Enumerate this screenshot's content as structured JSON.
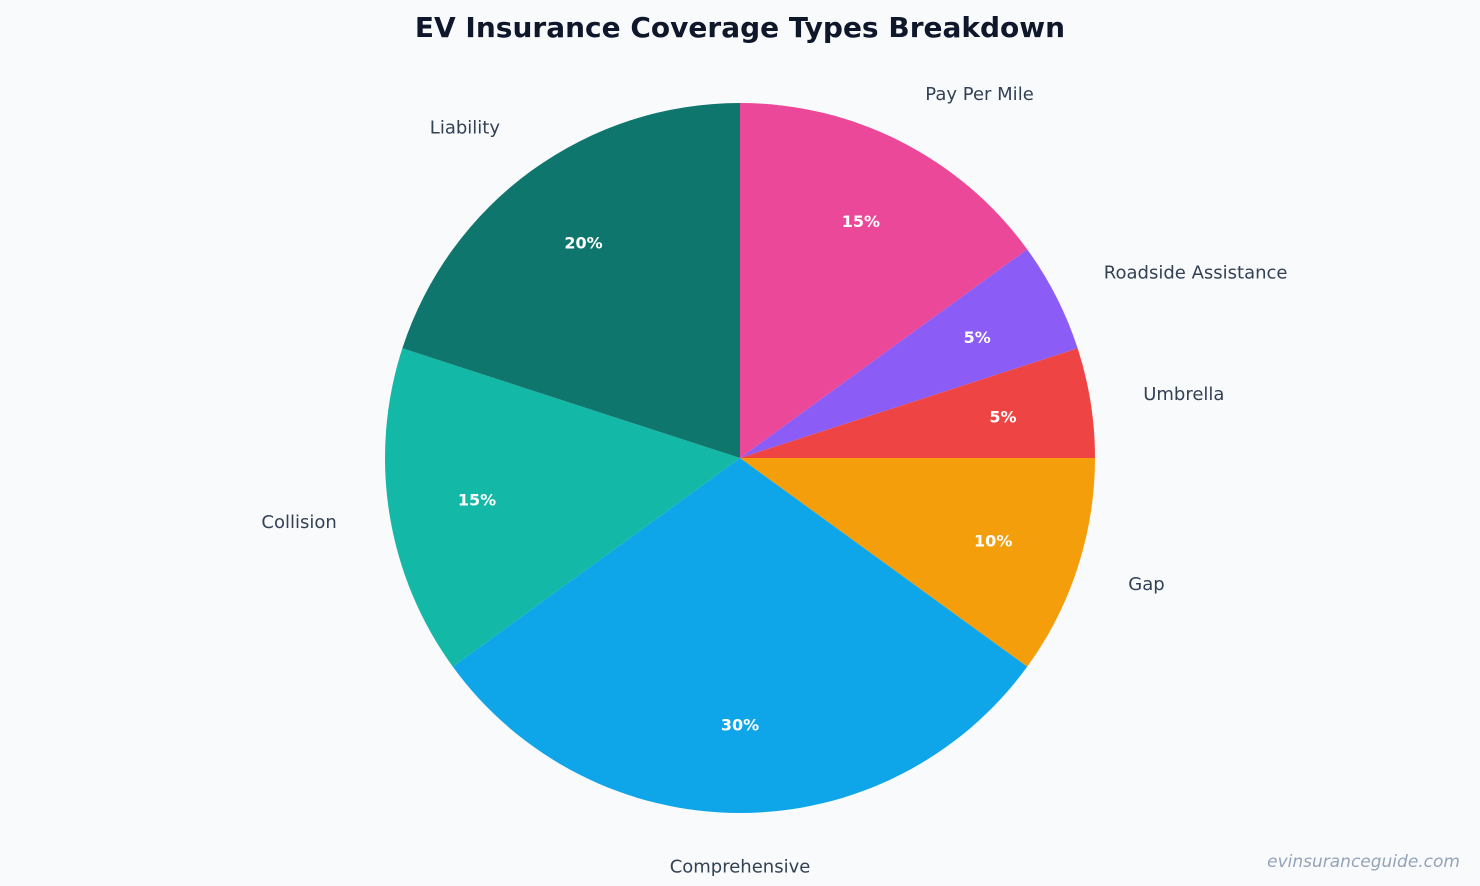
{
  "chart_data": {
    "type": "pie",
    "title": "EV Insurance Coverage Types Breakdown",
    "start_angle": "12 o'clock",
    "direction": "clockwise",
    "slices": [
      {
        "label": "Pay Per Mile",
        "value": 15,
        "pct_label": "15%",
        "color": "#ec4899"
      },
      {
        "label": "Roadside Assistance",
        "value": 5,
        "pct_label": "5%",
        "color": "#8b5cf6"
      },
      {
        "label": "Umbrella",
        "value": 5,
        "pct_label": "5%",
        "color": "#ef4444"
      },
      {
        "label": "Gap",
        "value": 10,
        "pct_label": "10%",
        "color": "#f59e0b"
      },
      {
        "label": "Comprehensive",
        "value": 30,
        "pct_label": "30%",
        "color": "#0ea5e9"
      },
      {
        "label": "Collision",
        "value": 15,
        "pct_label": "15%",
        "color": "#14b8a6"
      },
      {
        "label": "Liability",
        "value": 20,
        "pct_label": "20%",
        "color": "#0f766e"
      }
    ]
  },
  "watermark": "evinsuranceguide.com"
}
